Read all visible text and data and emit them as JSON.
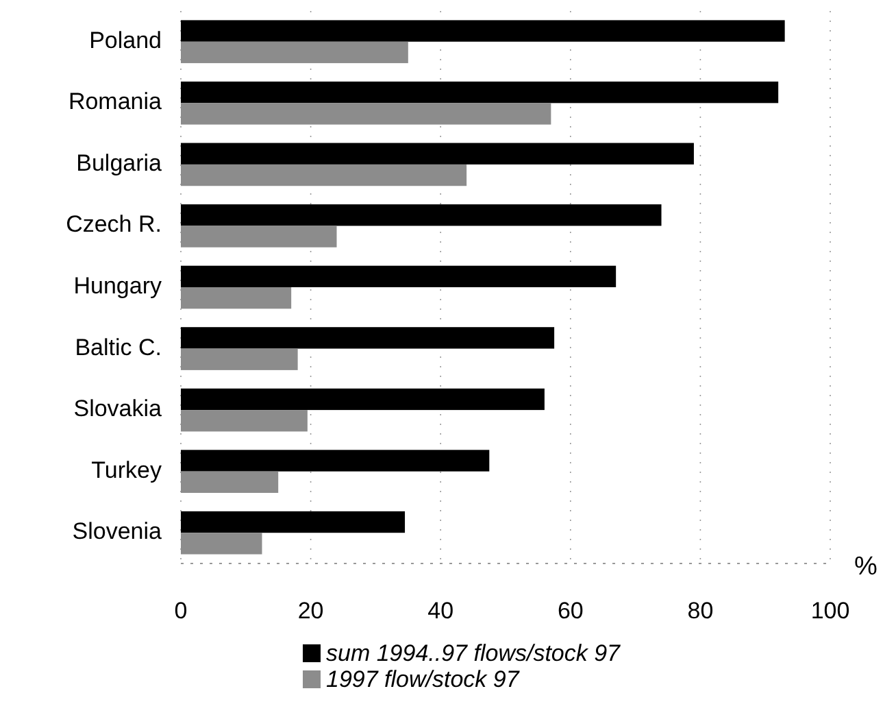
{
  "chart_data": {
    "type": "bar",
    "orientation": "horizontal",
    "categories": [
      "Poland",
      "Romania",
      "Bulgaria",
      "Czech R.",
      "Hungary",
      "Baltic C.",
      "Slovakia",
      "Turkey",
      "Slovenia"
    ],
    "series": [
      {
        "name": "sum 1994..97 flows/stock 97",
        "color": "#000000",
        "values": [
          93,
          92,
          79,
          74,
          67,
          57.5,
          56,
          47.5,
          34.5
        ]
      },
      {
        "name": "1997 flow/stock 97",
        "color": "#8c8c8c",
        "values": [
          35,
          57,
          44,
          24,
          17,
          18,
          19.5,
          15,
          12.5
        ]
      }
    ],
    "xlabel": "%",
    "xlim": [
      0,
      100
    ],
    "xticks": [
      0,
      20,
      40,
      60,
      80,
      100
    ],
    "grid": "x",
    "legend": "bottom"
  }
}
